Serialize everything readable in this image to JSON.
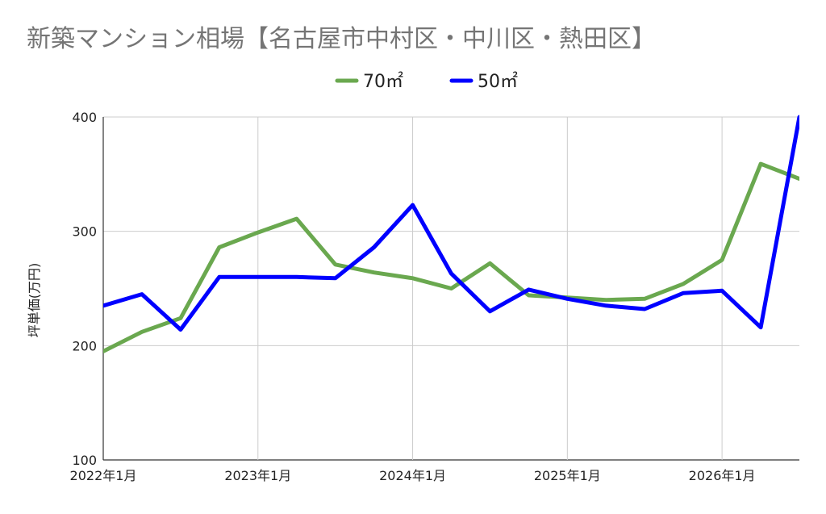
{
  "chart_data": {
    "type": "line",
    "title": "新築マンション相場【名古屋市中村区・中川区・熱田区】",
    "xlabel": "",
    "ylabel": "坪単価(万円)",
    "ylim": [
      100,
      400
    ],
    "yticks": [
      100,
      200,
      300,
      400
    ],
    "x_tick_labels": [
      "2022年1月",
      "2023年1月",
      "2024年1月",
      "2025年1月",
      "2026年1月"
    ],
    "x": [
      "2022-01",
      "2022-04",
      "2022-07",
      "2022-10",
      "2023-01",
      "2023-04",
      "2023-07",
      "2023-10",
      "2024-01",
      "2024-04",
      "2024-07",
      "2024-10",
      "2025-01",
      "2025-04",
      "2025-07",
      "2025-10",
      "2026-01",
      "2026-04",
      "2026-07"
    ],
    "grid": true,
    "legend_position": "top",
    "series": [
      {
        "name": "70㎡",
        "color": "#6aa84f",
        "values": [
          195,
          212,
          224,
          286,
          299,
          311,
          271,
          264,
          259,
          250,
          272,
          244,
          242,
          240,
          241,
          254,
          275,
          359,
          346
        ]
      },
      {
        "name": "50㎡",
        "color": "#0000ff",
        "values": [
          235,
          245,
          214,
          260,
          260,
          260,
          259,
          286,
          323,
          263,
          230,
          249,
          241,
          235,
          232,
          246,
          248,
          216,
          400
        ]
      }
    ]
  }
}
